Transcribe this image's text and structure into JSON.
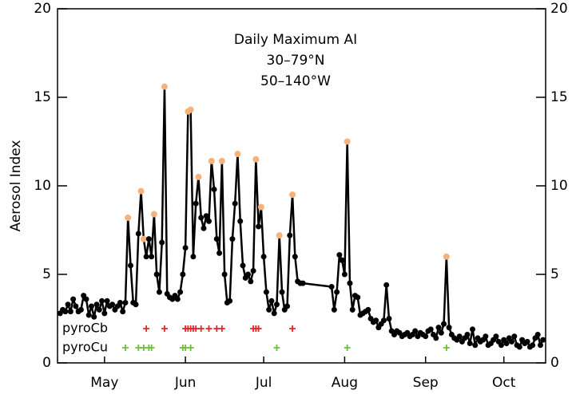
{
  "chart_data": {
    "type": "line",
    "title": "Daily Maximum AI",
    "annotations": [
      "30–79°N",
      "50–140°W"
    ],
    "y_label": "Aerosol Index",
    "ylim": [
      0,
      20
    ],
    "yticks": [
      0,
      5,
      10,
      15,
      20
    ],
    "right_axis": true,
    "xlim": [
      117,
      304
    ],
    "xticks": [
      {
        "value": 135,
        "label": "May"
      },
      {
        "value": 166,
        "label": "Jun"
      },
      {
        "value": 196,
        "label": "Jul"
      },
      {
        "value": 227,
        "label": "Aug"
      },
      {
        "value": 258,
        "label": "Sep"
      },
      {
        "value": 288,
        "label": "Oct"
      }
    ],
    "series": [
      {
        "color": "#000000",
        "highlight_color": "#f5b27a",
        "highlight_x": [
          144,
          149,
          150,
          154,
          158,
          167,
          168,
          171,
          176,
          180,
          186,
          193,
          195,
          202,
          207,
          228,
          266
        ],
        "x": [
          118,
          119,
          120,
          121,
          122,
          123,
          124,
          125,
          126,
          127,
          128,
          129,
          130,
          131,
          132,
          133,
          134,
          135,
          136,
          137,
          138,
          139,
          140,
          141,
          142,
          143,
          144,
          145,
          146,
          147,
          148,
          149,
          150,
          151,
          152,
          153,
          154,
          155,
          156,
          157,
          158,
          159,
          160,
          161,
          162,
          163,
          164,
          165,
          166,
          167,
          168,
          169,
          170,
          171,
          172,
          173,
          174,
          175,
          176,
          177,
          178,
          179,
          180,
          181,
          182,
          183,
          184,
          185,
          186,
          187,
          188,
          189,
          190,
          191,
          192,
          193,
          194,
          195,
          196,
          197,
          198,
          199,
          200,
          201,
          202,
          203,
          204,
          205,
          206,
          207,
          208,
          209,
          210,
          211,
          222,
          223,
          224,
          225,
          226,
          227,
          228,
          229,
          230,
          231,
          232,
          233,
          234,
          235,
          236,
          237,
          238,
          239,
          240,
          241,
          242,
          243,
          244,
          245,
          246,
          247,
          248,
          249,
          250,
          251,
          252,
          253,
          254,
          255,
          256,
          257,
          258,
          259,
          260,
          261,
          262,
          263,
          264,
          265,
          266,
          267,
          268,
          269,
          270,
          271,
          272,
          273,
          274,
          275,
          276,
          277,
          278,
          279,
          280,
          281,
          282,
          283,
          284,
          285,
          286,
          287,
          288,
          289,
          290,
          291,
          292,
          293,
          294,
          295,
          296,
          297,
          298,
          299,
          300,
          301,
          302,
          303
        ],
        "values": [
          2.8,
          3.0,
          2.9,
          3.3,
          2.9,
          3.6,
          3.2,
          2.9,
          3.0,
          3.8,
          3.6,
          2.7,
          3.2,
          2.6,
          3.3,
          3.0,
          3.5,
          2.8,
          3.5,
          3.2,
          3.3,
          3.0,
          3.2,
          3.4,
          2.9,
          3.4,
          8.2,
          5.5,
          3.4,
          3.3,
          7.3,
          9.7,
          7.0,
          6.0,
          7.0,
          6.0,
          8.4,
          5.0,
          4.0,
          6.8,
          15.6,
          3.9,
          3.7,
          3.6,
          3.8,
          3.6,
          4.0,
          5.0,
          6.5,
          14.2,
          14.3,
          6.0,
          9.0,
          10.5,
          8.2,
          7.6,
          8.3,
          8.0,
          11.4,
          9.8,
          7.0,
          6.2,
          11.4,
          5.0,
          3.4,
          3.5,
          7.0,
          9.0,
          11.8,
          8.0,
          5.5,
          4.8,
          5.0,
          4.6,
          5.2,
          11.5,
          7.7,
          8.8,
          6.0,
          4.0,
          3.0,
          3.5,
          2.8,
          3.3,
          7.2,
          4.0,
          3.0,
          3.2,
          7.2,
          9.5,
          6.0,
          4.6,
          4.5,
          4.5,
          4.3,
          3.0,
          4.0,
          6.1,
          5.8,
          5.0,
          12.5,
          4.5,
          3.0,
          3.8,
          3.7,
          2.7,
          2.8,
          2.9,
          3.0,
          2.5,
          2.3,
          2.4,
          2.0,
          2.2,
          2.4,
          4.4,
          2.5,
          1.8,
          1.6,
          1.8,
          1.7,
          1.5,
          1.6,
          1.7,
          1.5,
          1.6,
          1.8,
          1.5,
          1.7,
          1.6,
          1.5,
          1.8,
          1.9,
          1.6,
          1.4,
          2.0,
          1.7,
          2.2,
          6.0,
          2.0,
          1.6,
          1.4,
          1.3,
          1.5,
          1.2,
          1.4,
          1.6,
          1.1,
          1.9,
          1.0,
          1.4,
          1.2,
          1.3,
          1.5,
          1.0,
          1.1,
          1.3,
          1.5,
          1.2,
          1.0,
          1.3,
          1.1,
          1.4,
          1.2,
          1.5,
          1.0,
          0.9,
          1.3,
          1.1,
          1.2,
          0.9,
          1.0,
          1.4,
          1.6,
          1.0,
          1.3
        ]
      }
    ],
    "events": [
      {
        "name": "pyroCb",
        "color": "#e8262a",
        "x": [
          151,
          158,
          166,
          167,
          168,
          169,
          170,
          172,
          175,
          178,
          180,
          192,
          193,
          194,
          207
        ]
      },
      {
        "name": "pyroCu",
        "color": "#6cbf3a",
        "x": [
          143,
          148,
          150,
          152,
          153,
          165,
          166,
          168,
          201,
          228,
          266
        ]
      }
    ]
  }
}
